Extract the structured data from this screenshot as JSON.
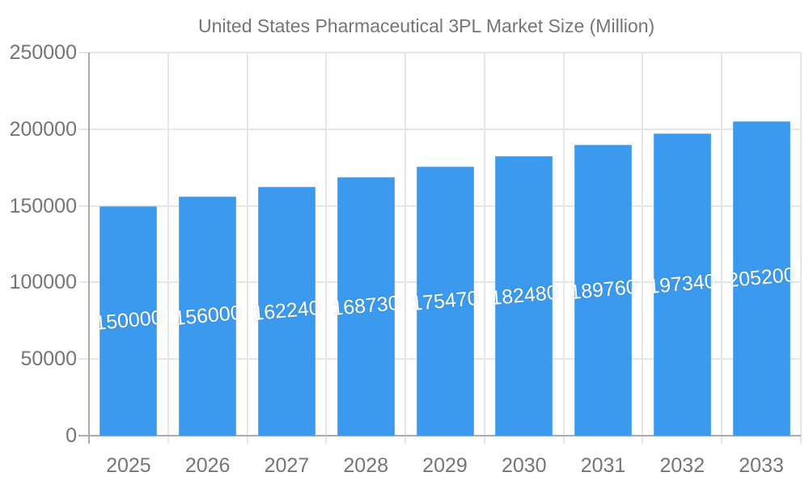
{
  "chart_data": {
    "type": "bar",
    "title": "United States Pharmaceutical 3PL Market Size (Million)",
    "categories": [
      "2025",
      "2026",
      "2027",
      "2028",
      "2029",
      "2030",
      "2031",
      "2032",
      "2033"
    ],
    "series": [
      {
        "name": "United States Pharmaceutical 3PL Market Size (Million)",
        "values": [
          150000,
          156000,
          162240,
          168730,
          175470,
          182480,
          189760,
          197340,
          205200
        ]
      }
    ],
    "bar_value_labels": [
      "150000",
      "156000",
      "162240",
      "168730",
      "175470",
      "182480",
      "189760",
      "197340",
      "205200"
    ],
    "xlabel": "",
    "ylabel": "",
    "ylim": [
      0,
      250000
    ],
    "yticks": [
      0,
      50000,
      100000,
      150000,
      200000,
      250000
    ],
    "ytick_labels": [
      "0",
      "50000",
      "100000",
      "150000",
      "200000",
      "250000"
    ],
    "grid": true,
    "legend_position": "top"
  },
  "colors": {
    "bar": "#3B99EE",
    "axis_text": "#757575",
    "gridline": "#E6E6E6",
    "axis_line": "#ABABAB",
    "bar_label_text": "#FFFFFF",
    "background": "#FFFFFF"
  }
}
